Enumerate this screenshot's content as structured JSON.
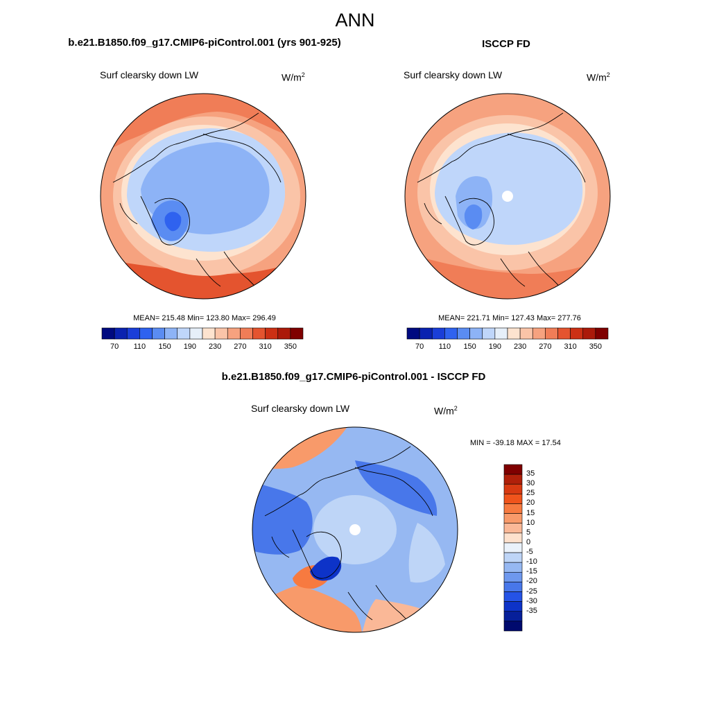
{
  "page": {
    "title": "ANN"
  },
  "panels": [
    {
      "id": "model",
      "title": "b.e21.B1850.f09_g17.CMIP6-piControl.001 (yrs 901-925)",
      "variable": "Surf clearsky down LW",
      "units": "W/m",
      "units_sup": "2",
      "stats": "MEAN= 215.48  Min= 123.80  Max= 296.49"
    },
    {
      "id": "obs",
      "title": "ISCCP FD",
      "variable": "Surf clearsky down LW",
      "units": "W/m",
      "units_sup": "2",
      "stats": "MEAN= 221.71  Min= 127.43  Max= 277.76"
    },
    {
      "id": "diff",
      "title": "b.e21.B1850.f09_g17.CMIP6-piControl.001 - ISCCP FD",
      "variable": "Surf clearsky down LW",
      "units": "W/m",
      "units_sup": "2",
      "stats": "MIN = -39.18 MAX =  17.54"
    }
  ],
  "colorbars": {
    "absolute": {
      "orientation": "horizontal",
      "tick_labels": [
        "70",
        "110",
        "150",
        "190",
        "230",
        "270",
        "310",
        "350"
      ],
      "colors": [
        "#000a80",
        "#0a22b0",
        "#1a3ed8",
        "#2f62ef",
        "#5a8cf2",
        "#8db3f6",
        "#bfd6fa",
        "#e6eff9",
        "#fde3cf",
        "#fac4a8",
        "#f6a27f",
        "#f07d57",
        "#e4542f",
        "#cc3014",
        "#ab1a0a",
        "#7f0000"
      ]
    },
    "difference": {
      "orientation": "vertical",
      "tick_labels": [
        "35",
        "30",
        "25",
        "20",
        "15",
        "10",
        "5",
        "0",
        "-5",
        "-10",
        "-15",
        "-20",
        "-25",
        "-30",
        "-35"
      ],
      "colors": [
        "#7f0000",
        "#b0200a",
        "#d83a12",
        "#f0541c",
        "#f77a40",
        "#f89a6a",
        "#fab897",
        "#fde1cd",
        "#eaf2fb",
        "#bed5f7",
        "#96b8f2",
        "#6e98ee",
        "#4877ea",
        "#2553e6",
        "#0d33c8",
        "#061f9a",
        "#000a6e"
      ]
    }
  },
  "map_colors": {
    "cold_core": "#2f62ef",
    "cold_mid": "#5a8cf2",
    "cold_light": "#8db3f6",
    "cool": "#bfd6fa",
    "neutral_cool": "#e6eff9",
    "neutral_warm": "#fde3cf",
    "warm": "#fac4a8",
    "warmer": "#f6a27f",
    "hot": "#f07d57",
    "hotter": "#e4542f",
    "outline": "#000000"
  }
}
